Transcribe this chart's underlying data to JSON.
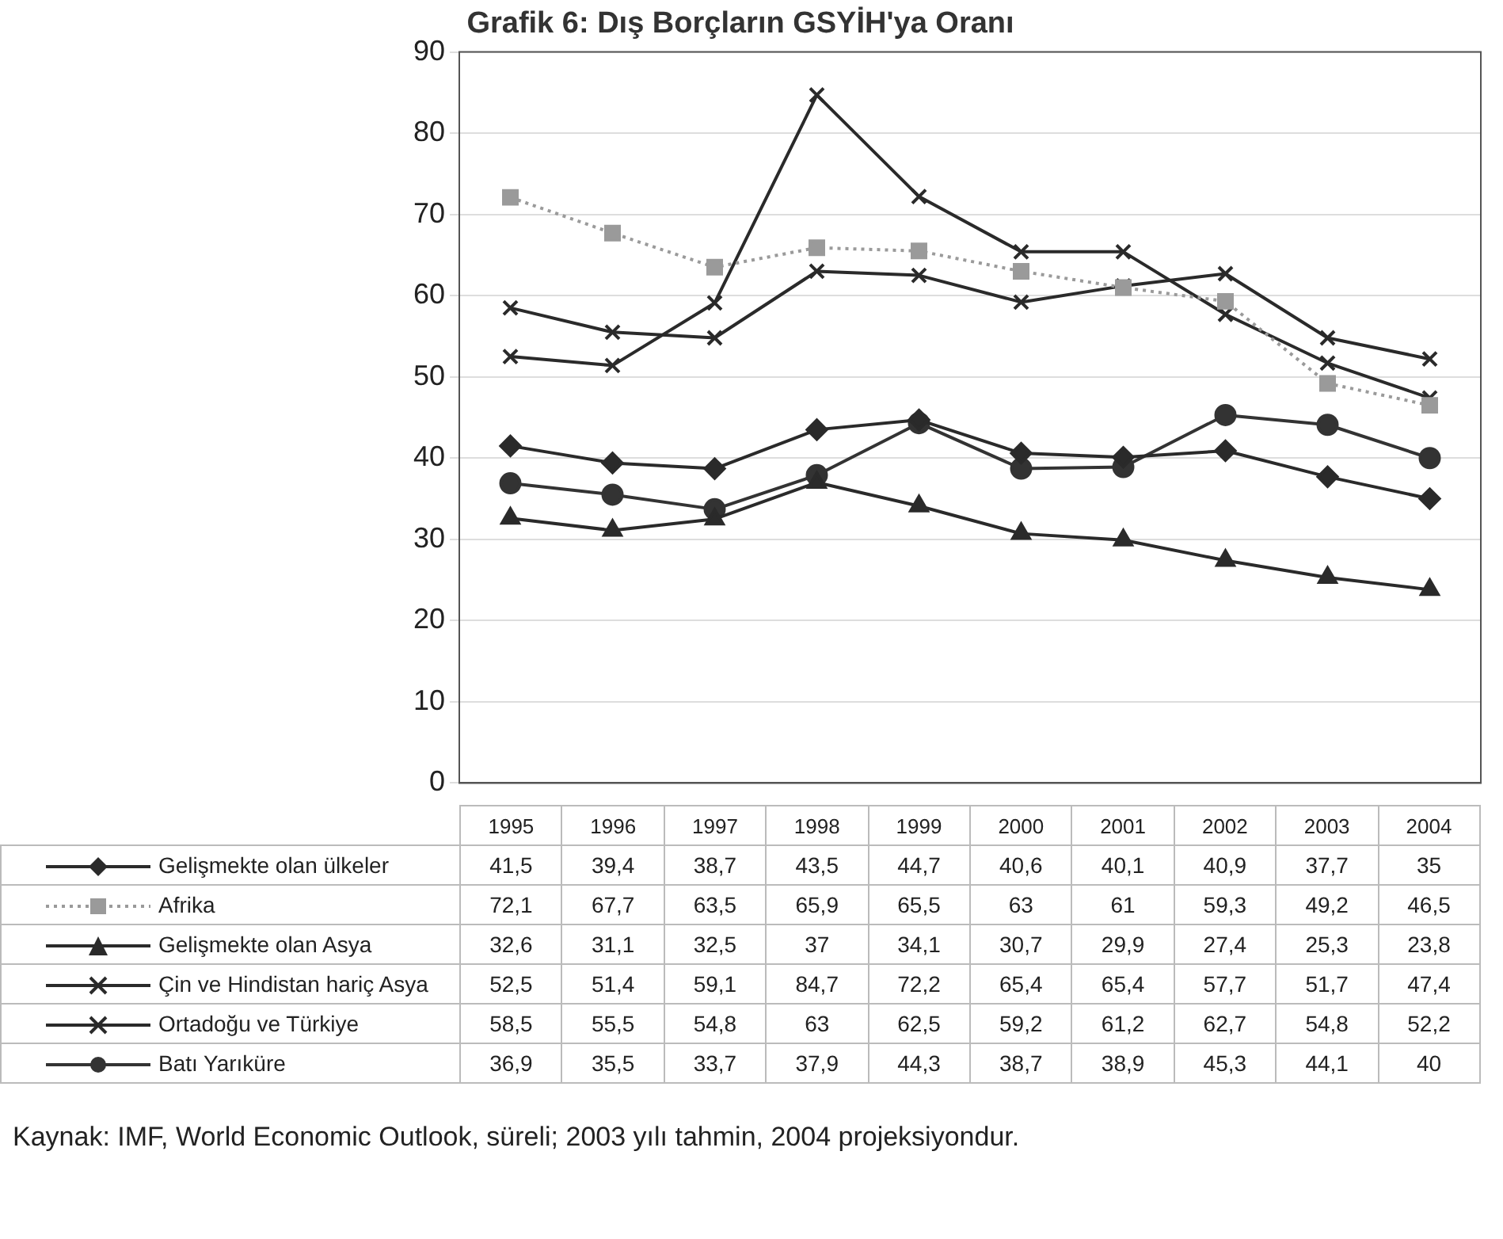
{
  "chart_data": {
    "type": "line",
    "title": "Grafik 6: Dış Borçların GSYİH'ya Oranı",
    "categories": [
      "1995",
      "1996",
      "1997",
      "1998",
      "1999",
      "2000",
      "2001",
      "2002",
      "2003",
      "2004"
    ],
    "ylim": [
      0,
      90
    ],
    "yticks": [
      0,
      10,
      20,
      30,
      40,
      50,
      60,
      70,
      80,
      90
    ],
    "grid": "y",
    "legend": "bottom",
    "series": [
      {
        "name": "Gelişmekte olan ülkeler",
        "color": "#2a2a2a",
        "marker": "diamond",
        "values": [
          41.5,
          39.4,
          38.7,
          43.5,
          44.7,
          40.6,
          40.1,
          40.9,
          37.7,
          35
        ],
        "value_labels": [
          "41,5",
          "39,4",
          "38,7",
          "43,5",
          "44,7",
          "40,6",
          "40,1",
          "40,9",
          "37,7",
          "35"
        ]
      },
      {
        "name": "Afrika",
        "color": "#9a9a9a",
        "marker": "square",
        "line_style": "dotted",
        "values": [
          72.1,
          67.7,
          63.5,
          65.9,
          65.5,
          63,
          61,
          59.3,
          49.2,
          46.5
        ],
        "value_labels": [
          "72,1",
          "67,7",
          "63,5",
          "65,9",
          "65,5",
          "63",
          "61",
          "59,3",
          "49,2",
          "46,5"
        ]
      },
      {
        "name": "Gelişmekte olan Asya",
        "color": "#2a2a2a",
        "marker": "triangle",
        "values": [
          32.6,
          31.1,
          32.5,
          37,
          34.1,
          30.7,
          29.9,
          27.4,
          25.3,
          23.8
        ],
        "value_labels": [
          "32,6",
          "31,1",
          "32,5",
          "37",
          "34,1",
          "30,7",
          "29,9",
          "27,4",
          "25,3",
          "23,8"
        ]
      },
      {
        "name": "Çin ve Hindistan hariç Asya",
        "color": "#2a2a2a",
        "marker": "cross",
        "values": [
          52.5,
          51.4,
          59.1,
          84.7,
          72.2,
          65.4,
          65.4,
          57.7,
          51.7,
          47.4
        ],
        "value_labels": [
          "52,5",
          "51,4",
          "59,1",
          "84,7",
          "72,2",
          "65,4",
          "65,4",
          "57,7",
          "51,7",
          "47,4"
        ]
      },
      {
        "name": "Ortadoğu ve Türkiye",
        "color": "#2a2a2a",
        "marker": "cross",
        "values": [
          58.5,
          55.5,
          54.8,
          63,
          62.5,
          59.2,
          61.2,
          62.7,
          54.8,
          52.2
        ],
        "value_labels": [
          "58,5",
          "55,5",
          "54,8",
          "63",
          "62,5",
          "59,2",
          "61,2",
          "62,7",
          "54,8",
          "52,2"
        ]
      },
      {
        "name": "Batı Yarıküre",
        "color": "#333333",
        "marker": "circle",
        "values": [
          36.9,
          35.5,
          33.7,
          37.9,
          44.3,
          38.7,
          38.9,
          45.3,
          44.1,
          40
        ],
        "value_labels": [
          "36,9",
          "35,5",
          "33,7",
          "37,9",
          "44,3",
          "38,7",
          "38,9",
          "45,3",
          "44,1",
          "40"
        ]
      }
    ],
    "annotations": [
      "Kaynak: IMF, World Economic Outlook, süreli; 2003 yılı tahmin, 2004 projeksiyondur."
    ]
  }
}
